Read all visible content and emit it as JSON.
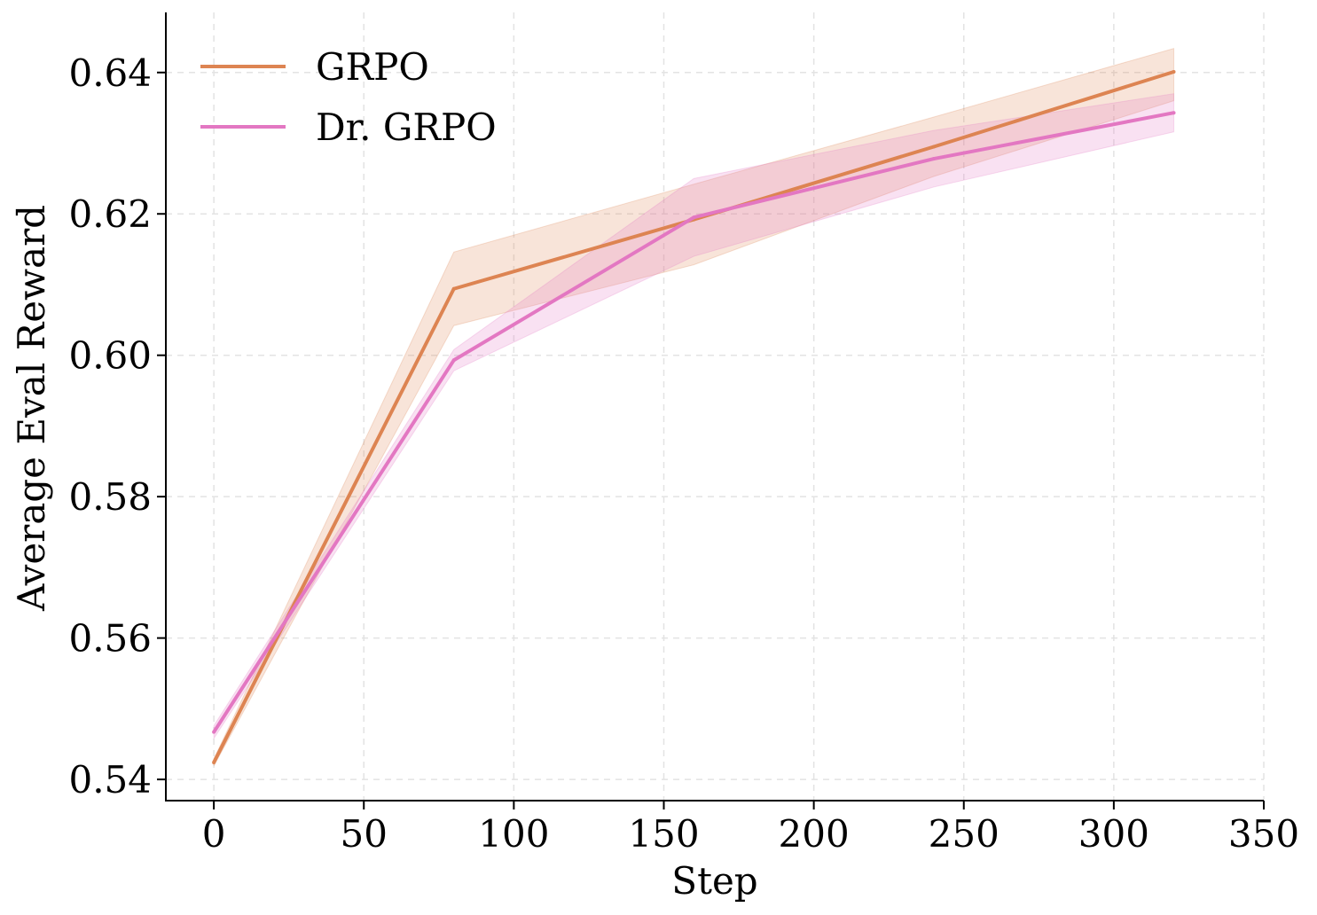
{
  "chart_data": {
    "type": "line",
    "title": "",
    "xlabel": "Step",
    "ylabel": "Average Eval Reward",
    "xlim": [
      -16,
      350
    ],
    "ylim": [
      0.537,
      0.6485
    ],
    "xticks": [
      0,
      50,
      100,
      150,
      200,
      250,
      300,
      350
    ],
    "xtick_labels": [
      "0",
      "50",
      "100",
      "150",
      "200",
      "250",
      "300",
      "350"
    ],
    "yticks": [
      0.54,
      0.56,
      0.58,
      0.6,
      0.62,
      0.64
    ],
    "ytick_labels": [
      "0.54",
      "0.56",
      "0.58",
      "0.60",
      "0.62",
      "0.64"
    ],
    "grid": true,
    "legend_position": "top-left",
    "x": [
      0,
      80,
      160,
      240,
      320
    ],
    "series": [
      {
        "name": "GRPO",
        "color": "#dd8452",
        "values": [
          0.5424,
          0.6094,
          0.6192,
          0.6295,
          0.6401
        ],
        "lower": [
          0.5419,
          0.6042,
          0.6128,
          0.6253,
          0.636
        ],
        "upper": [
          0.5429,
          0.6146,
          0.6242,
          0.6337,
          0.6434
        ]
      },
      {
        "name": "Dr. GRPO",
        "color": "#e377c2",
        "values": [
          0.5467,
          0.5993,
          0.6195,
          0.6278,
          0.6343
        ],
        "lower": [
          0.5458,
          0.5978,
          0.614,
          0.6238,
          0.6316
        ],
        "upper": [
          0.5476,
          0.6008,
          0.625,
          0.6318,
          0.637
        ]
      }
    ]
  }
}
